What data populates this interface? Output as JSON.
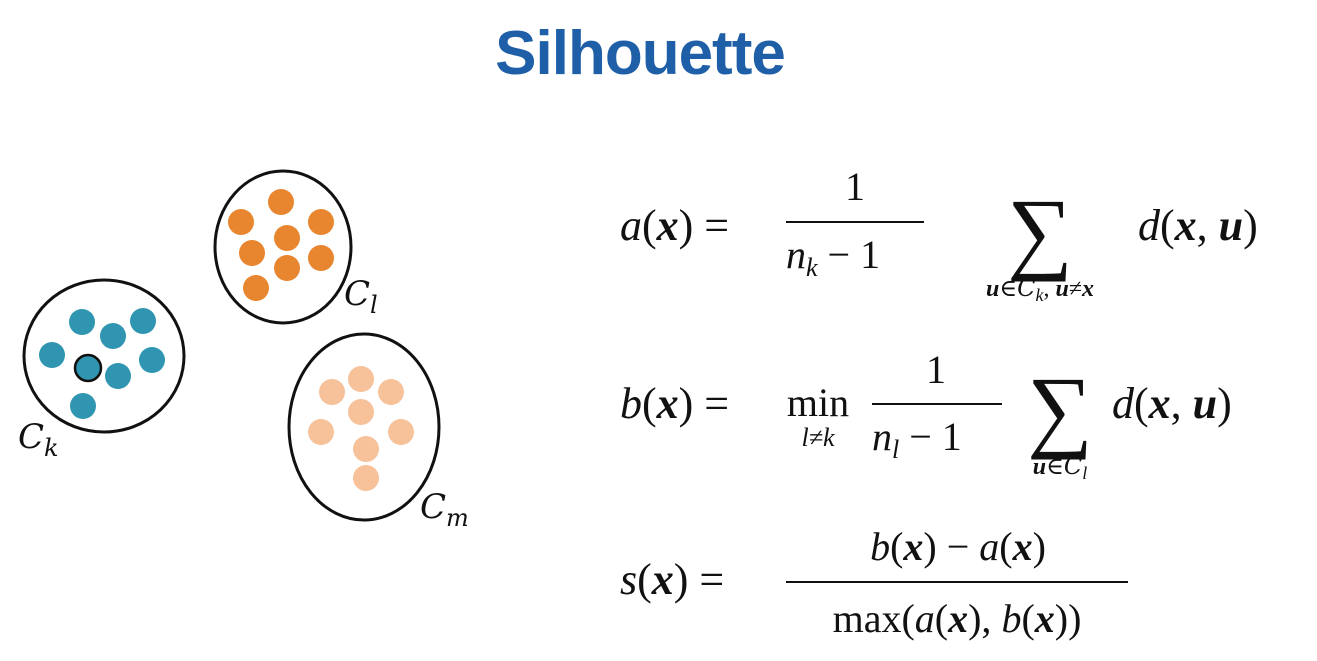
{
  "title": "Silhouette",
  "colors": {
    "title": "#1f5fa8",
    "cluster_k": "#2f95b1",
    "cluster_l": "#e8852f",
    "cluster_m": "#f7c19a",
    "outline": "#111111"
  },
  "clusters": {
    "k": {
      "label_main": "C",
      "label_sub": "k",
      "point_count": 8,
      "highlighted_point": "x"
    },
    "l": {
      "label_main": "C",
      "label_sub": "l",
      "point_count": 8
    },
    "m": {
      "label_main": "C",
      "label_sub": "m",
      "point_count": 8
    }
  },
  "formulas": {
    "a": {
      "lhs": "a(x)",
      "numerator": "1",
      "denominator": "n_k − 1",
      "sum_subscript": "u∈C_k, u≠x",
      "term": "d(x, u)"
    },
    "b": {
      "lhs": "b(x)",
      "operator": "min",
      "operator_subscript": "l≠k",
      "numerator": "1",
      "denominator": "n_l − 1",
      "sum_subscript": "u∈C_l",
      "term": "d(x, u)"
    },
    "s": {
      "lhs": "s(x)",
      "numerator": "b(x) − a(x)",
      "denominator": "max(a(x), b(x))"
    }
  }
}
